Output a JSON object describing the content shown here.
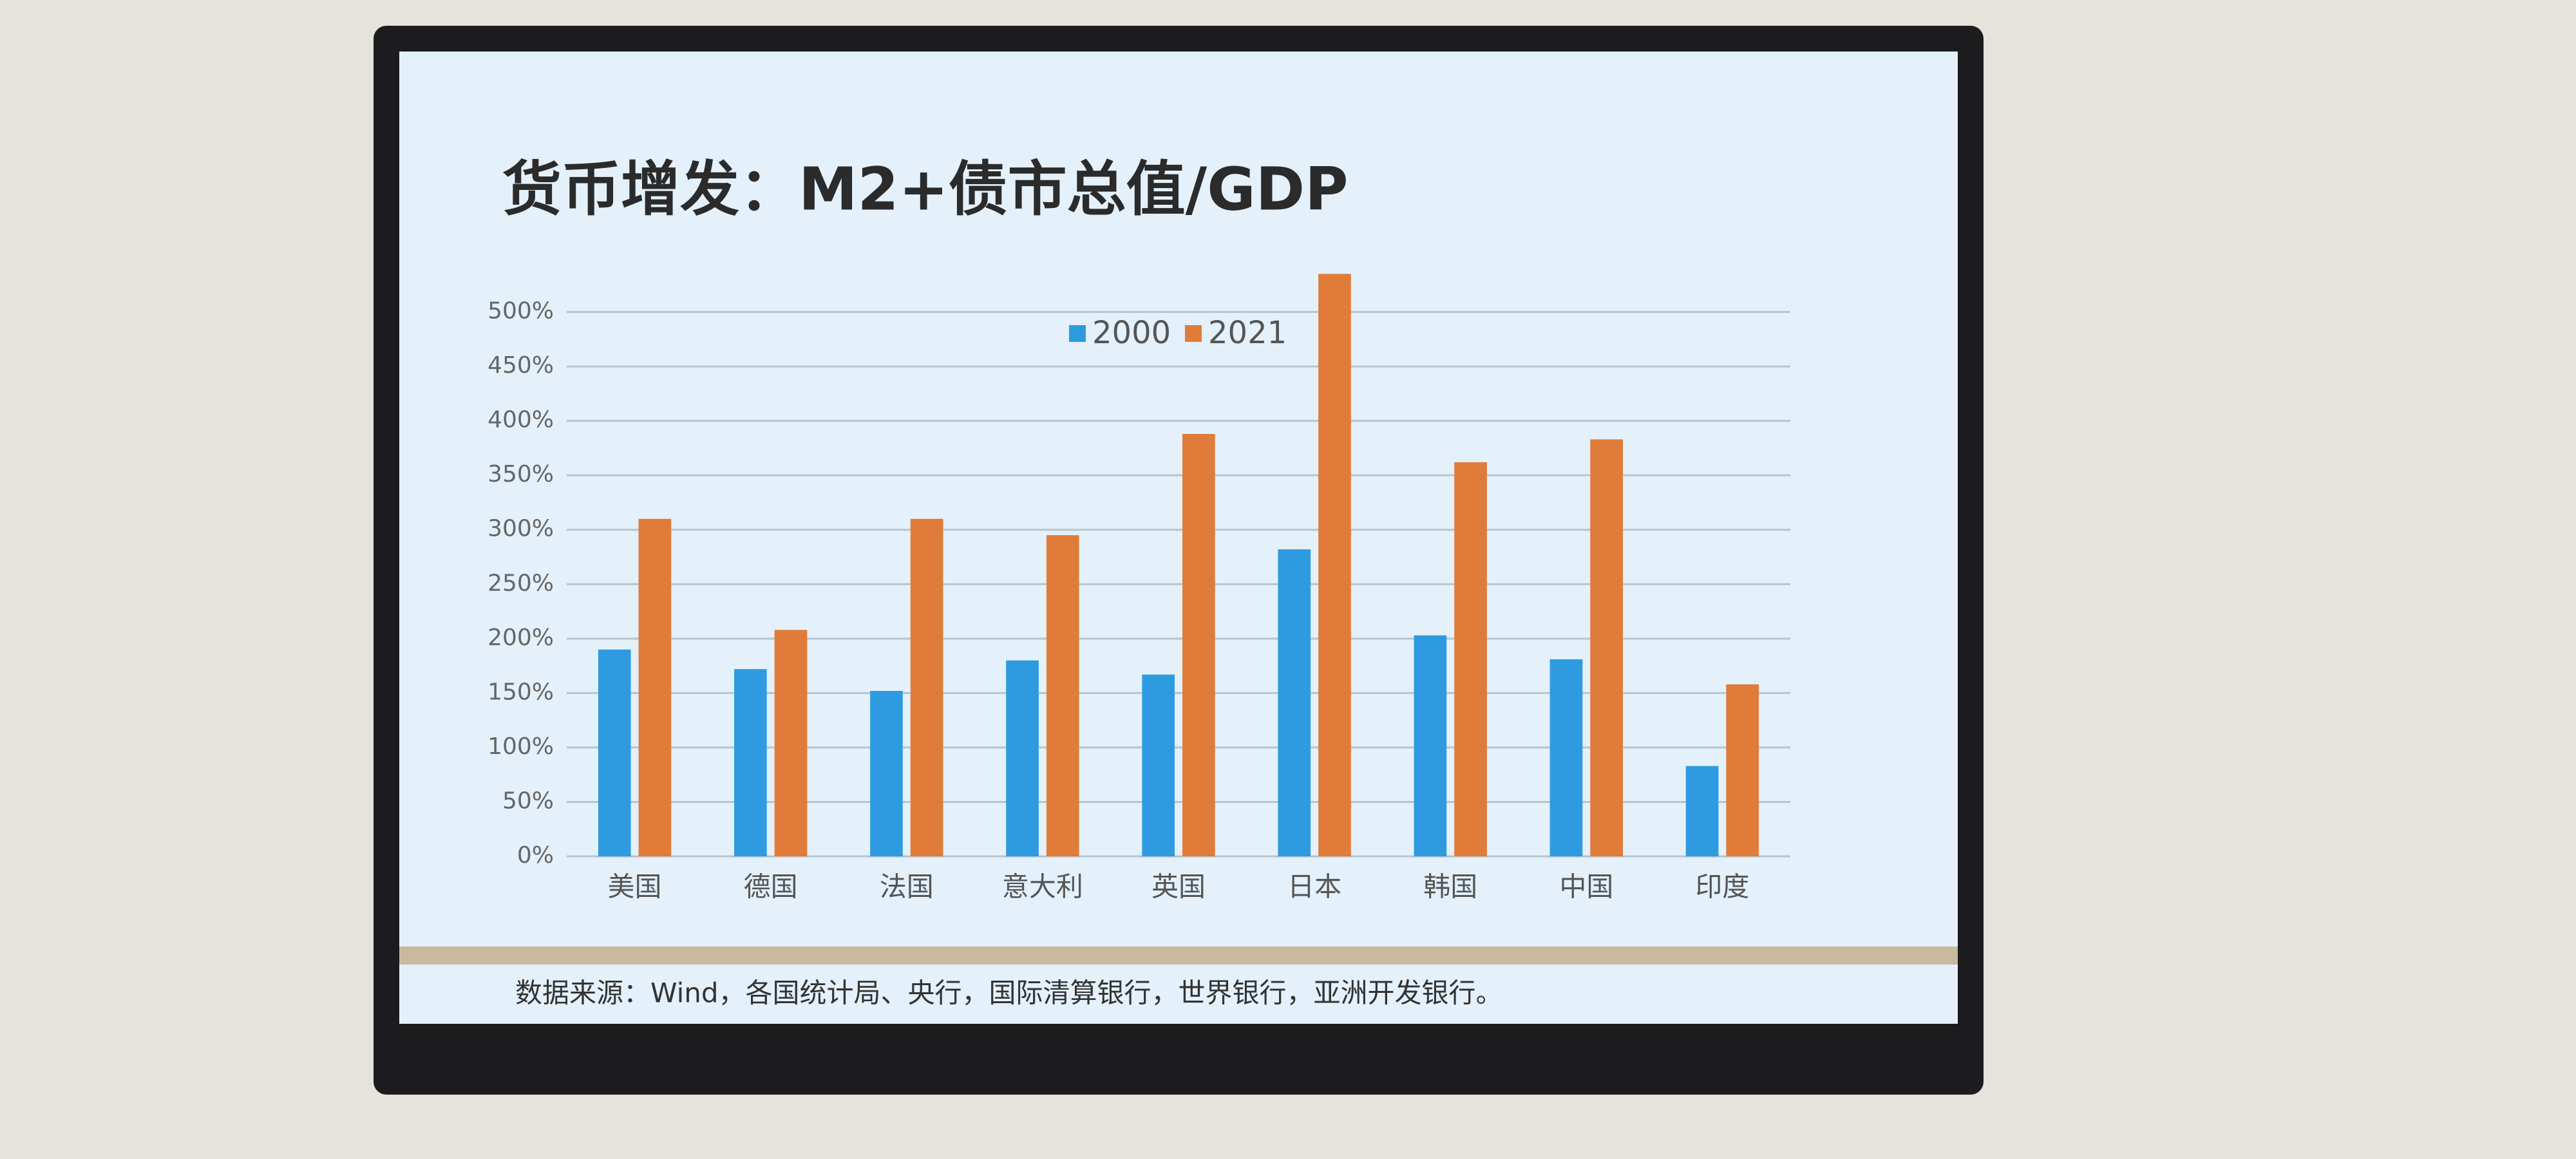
{
  "chart_data": {
    "type": "bar",
    "title": "货币增发：M2+债市总值/GDP",
    "source": "数据来源：Wind，各国统计局、央行，国际清算银行，世界银行，亚洲开发银行。",
    "categories": [
      "美国",
      "德国",
      "法国",
      "意大利",
      "英国",
      "日本",
      "韩国",
      "中国",
      "印度"
    ],
    "series": [
      {
        "name": "2000",
        "color": "#2e9be0",
        "values": [
          190,
          172,
          152,
          180,
          167,
          282,
          203,
          181,
          83
        ]
      },
      {
        "name": "2021",
        "color": "#e07b39",
        "values": [
          310,
          208,
          310,
          295,
          388,
          535,
          362,
          383,
          158
        ]
      }
    ],
    "ylim": [
      0,
      550
    ],
    "yticks": [
      {
        "value": 0,
        "label": "0%"
      },
      {
        "value": 50,
        "label": "50%"
      },
      {
        "value": 100,
        "label": "100%"
      },
      {
        "value": 150,
        "label": "150%"
      },
      {
        "value": 200,
        "label": "200%"
      },
      {
        "value": 250,
        "label": "250%"
      },
      {
        "value": 300,
        "label": "300%"
      },
      {
        "value": 350,
        "label": "350%"
      },
      {
        "value": 400,
        "label": "400%"
      },
      {
        "value": 450,
        "label": "450%"
      },
      {
        "value": 500,
        "label": "500%"
      }
    ],
    "grid": true,
    "legend": "top"
  }
}
